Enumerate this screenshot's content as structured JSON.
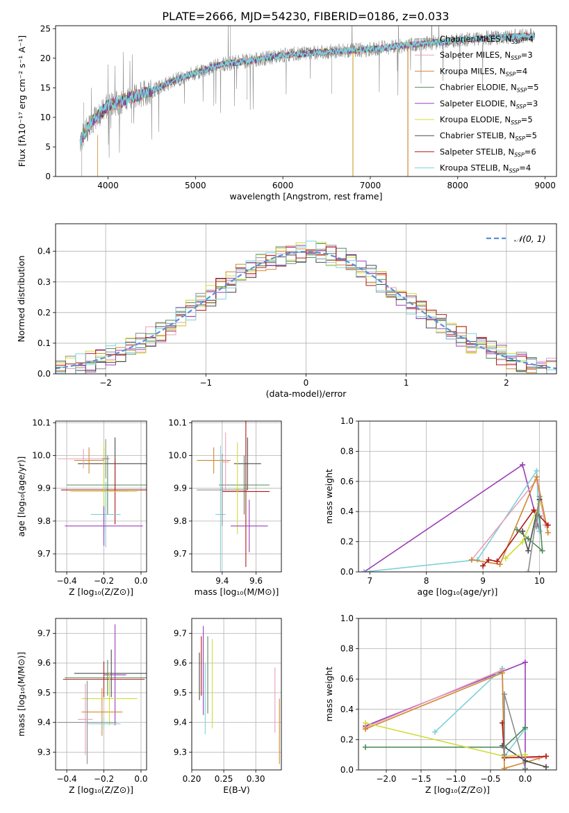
{
  "figure_title": "PLATE=2666, MJD=54230, FIBERID=0186, z=0.033",
  "model_colors": [
    "#8c8c8c",
    "#e8a0b8",
    "#d08830",
    "#4f8a5a",
    "#9a3fb8",
    "#d0dc3a",
    "#4a4a4a",
    "#b01818",
    "#7ed0d8"
  ],
  "chart_data": [
    {
      "id": "spectrum",
      "type": "line",
      "xlabel": "wavelength [Angstrom, rest frame]",
      "ylabel": "Flux [fλ10⁻¹⁷ erg cm⁻² s⁻¹ A⁻¹]",
      "xlim": [
        3400,
        9130
      ],
      "ylim": [
        0,
        25.5
      ],
      "xticks": [
        "4000",
        "5000",
        "6000",
        "7000",
        "8000",
        "9000"
      ],
      "yticks": [
        "0",
        "5",
        "10",
        "15",
        "20",
        "25"
      ],
      "grid": false,
      "legend_position": "right",
      "legend": [
        "Chabrier MILES, N_SSP=4",
        "Salpeter MILES, N_SSP=3",
        "Kroupa MILES, N_SSP=4",
        "Chabrier ELODIE, N_SSP=5",
        "Salpeter ELODIE, N_SSP=3",
        "Kroupa ELODIE, N_SSP=5",
        "Chabrier STELIB, N_SSP=5",
        "Salpeter STELIB, N_SSP=6",
        "Kroupa STELIB, N_SSP=4"
      ],
      "continuum": {
        "x": [
          3680,
          3800,
          4000,
          4200,
          4500,
          4800,
          5000,
          5300,
          5600,
          6000,
          6400,
          6800,
          7000,
          7300,
          7600,
          8000,
          8400,
          8800
        ],
        "y": [
          6.0,
          9.0,
          12.0,
          13.0,
          14.5,
          16.5,
          17.5,
          19.0,
          19.5,
          20.5,
          21.0,
          21.3,
          21.5,
          22.0,
          22.5,
          23.0,
          23.5,
          23.8
        ]
      }
    },
    {
      "id": "residuals",
      "type": "histogram",
      "xlabel": "(data-model)/error",
      "ylabel": "Normed distribution",
      "xlim": [
        -2.5,
        2.5
      ],
      "ylim": [
        0,
        0.49
      ],
      "xticks": [
        "−2",
        "−1",
        "0",
        "1",
        "2"
      ],
      "yticks": [
        "0.0",
        "0.1",
        "0.2",
        "0.3",
        "0.4"
      ],
      "grid": true,
      "legend_position": "top-right",
      "legend": [
        "𝒩(0, 1)"
      ],
      "bin_width": 0.1
    },
    {
      "id": "age_vs_Z",
      "type": "errorbar",
      "xlabel": "Z [log₁₀(Z/Z⊙)]",
      "ylabel": "age  [log₁₀(age/yr)]",
      "xlim": [
        -0.46,
        0.03
      ],
      "ylim": [
        9.645,
        10.105
      ],
      "xticks": [
        "−0.4",
        "−0.2",
        "0.0"
      ],
      "yticks": [
        "9.7",
        "9.8",
        "9.9",
        "10.0",
        "10.1"
      ],
      "grid": true,
      "points": [
        {
          "x": -0.14,
          "y": 9.975,
          "xerr": 0.2,
          "yerr": 0.08,
          "c": 6
        },
        {
          "x": -0.18,
          "y": 9.91,
          "xerr": 0.22,
          "yerr": 0.09,
          "c": 3
        },
        {
          "x": -0.2,
          "y": 9.895,
          "xerr": 0.23,
          "yerr": 0.13,
          "c": 7
        },
        {
          "x": -0.14,
          "y": 9.89,
          "xerr": 0.07,
          "yerr": 0.1,
          "c": 7
        },
        {
          "x": -0.2,
          "y": 9.89,
          "xerr": 0.18,
          "yerr": 0.15,
          "c": 5
        },
        {
          "x": -0.28,
          "y": 9.985,
          "xerr": 0.08,
          "yerr": 0.04,
          "c": 2
        },
        {
          "x": -0.31,
          "y": 9.99,
          "xerr": 0.14,
          "yerr": 0.03,
          "c": 1
        },
        {
          "x": -0.19,
          "y": 9.82,
          "xerr": 0.08,
          "yerr": 0.1,
          "c": 8
        },
        {
          "x": -0.2,
          "y": 9.785,
          "xerr": 0.21,
          "yerr": 0.06,
          "c": 4
        },
        {
          "x": -0.19,
          "y": 9.99,
          "xerr": 0.02,
          "yerr": 0.06,
          "c": 0
        }
      ]
    },
    {
      "id": "age_vs_mass",
      "type": "errorbar",
      "xlabel": "mass [log₁₀(M/M⊙)]",
      "ylabel": "",
      "xlim": [
        9.22,
        9.75
      ],
      "ylim": [
        9.645,
        10.105
      ],
      "xticks": [
        "9.4",
        "9.6"
      ],
      "yticks": [
        "9.7",
        "9.8",
        "9.9",
        "10.0",
        "10.1"
      ],
      "grid": true,
      "points": [
        {
          "x": 9.55,
          "y": 9.975,
          "xerr": 0.08,
          "yerr": 0.08,
          "c": 6
        },
        {
          "x": 9.53,
          "y": 9.91,
          "xerr": 0.15,
          "yerr": 0.09,
          "c": 3
        },
        {
          "x": 9.54,
          "y": 9.89,
          "xerr": 0.14,
          "yerr": 0.23,
          "c": 7
        },
        {
          "x": 9.35,
          "y": 9.985,
          "xerr": 0.1,
          "yerr": 0.04,
          "c": 2
        },
        {
          "x": 9.49,
          "y": 9.9,
          "xerr": 0.02,
          "yerr": 0.14,
          "c": 5
        },
        {
          "x": 9.39,
          "y": 9.82,
          "xerr": 0.03,
          "yerr": 0.21,
          "c": 8
        },
        {
          "x": 9.4,
          "y": 9.895,
          "xerr": 0.15,
          "yerr": 0.11,
          "c": 0
        },
        {
          "x": 9.56,
          "y": 9.785,
          "xerr": 0.11,
          "yerr": 0.08,
          "c": 4
        },
        {
          "x": 9.42,
          "y": 9.98,
          "xerr": 0.02,
          "yerr": 0.09,
          "c": 1
        }
      ]
    },
    {
      "id": "weight_vs_age",
      "type": "line",
      "xlabel": "age  [log₁₀(age/yr)]",
      "ylabel": "mass weight",
      "xlim": [
        6.8,
        10.3
      ],
      "ylim": [
        0,
        1.0
      ],
      "xticks": [
        "7",
        "8",
        "9",
        "10"
      ],
      "yticks": [
        "0.0",
        "0.2",
        "0.4",
        "0.6",
        "0.8",
        "1.0"
      ],
      "grid": true,
      "series": [
        {
          "c": 4,
          "x": [
            6.9,
            9.7,
            10.0
          ],
          "y": [
            0.0,
            0.71,
            0.27
          ]
        },
        {
          "c": 8,
          "x": [
            6.9,
            8.9,
            9.95,
            10.0
          ],
          "y": [
            0.0,
            0.08,
            0.67,
            0.27
          ]
        },
        {
          "c": 1,
          "x": [
            8.8,
            9.95,
            10.1
          ],
          "y": [
            0.08,
            0.61,
            0.31
          ]
        },
        {
          "c": 2,
          "x": [
            8.8,
            9.3,
            9.95,
            10.15
          ],
          "y": [
            0.08,
            0.05,
            0.63,
            0.26
          ]
        },
        {
          "c": 7,
          "x": [
            9.0,
            9.1,
            9.25,
            9.9,
            10.15
          ],
          "y": [
            0.04,
            0.08,
            0.07,
            0.41,
            0.31
          ]
        },
        {
          "c": 6,
          "x": [
            9.7,
            9.8,
            10.0
          ],
          "y": [
            0.27,
            0.14,
            0.48
          ]
        },
        {
          "c": 3,
          "x": [
            9.6,
            9.8,
            10.05,
            10.0
          ],
          "y": [
            0.28,
            0.22,
            0.14,
            0.37
          ]
        },
        {
          "c": 5,
          "x": [
            9.4,
            9.7,
            10.0
          ],
          "y": [
            0.09,
            0.2,
            0.45
          ]
        },
        {
          "c": 0,
          "x": [
            9.8,
            10.0,
            9.95
          ],
          "y": [
            0.0,
            0.5,
            0.3
          ]
        }
      ]
    },
    {
      "id": "mass_vs_Z",
      "type": "errorbar",
      "xlabel": "Z [log₁₀(Z/Z⊙)]",
      "ylabel": "mass [log₁₀(M/M⊙)]",
      "xlim": [
        -0.46,
        0.03
      ],
      "ylim": [
        9.24,
        9.75
      ],
      "xticks": [
        "−0.4",
        "−0.2",
        "0.0"
      ],
      "yticks": [
        "9.3",
        "9.4",
        "9.5",
        "9.6",
        "9.7"
      ],
      "grid": true,
      "points": [
        {
          "x": -0.16,
          "y": 9.565,
          "xerr": 0.2,
          "yerr": 0.08,
          "c": 6
        },
        {
          "x": -0.18,
          "y": 9.55,
          "xerr": 0.23,
          "yerr": 0.06,
          "c": 3
        },
        {
          "x": -0.2,
          "y": 9.545,
          "xerr": 0.22,
          "yerr": 0.06,
          "c": 7
        },
        {
          "x": -0.14,
          "y": 9.56,
          "xerr": 0.06,
          "yerr": 0.17,
          "c": 4
        },
        {
          "x": -0.21,
          "y": 9.435,
          "xerr": 0.11,
          "yerr": 0.08,
          "c": 2
        },
        {
          "x": -0.17,
          "y": 9.48,
          "xerr": 0.15,
          "yerr": 0.09,
          "c": 5
        },
        {
          "x": -0.29,
          "y": 9.4,
          "xerr": 0.16,
          "yerr": 0.14,
          "c": 0
        },
        {
          "x": -0.3,
          "y": 9.41,
          "xerr": 0.04,
          "yerr": 0.12,
          "c": 1
        },
        {
          "x": -0.2,
          "y": 9.395,
          "xerr": 0.09,
          "yerr": 0.02,
          "c": 8
        }
      ]
    },
    {
      "id": "mass_vs_ebv",
      "type": "errorbar",
      "xlabel": "E(B-V)",
      "ylabel": "",
      "xlim": [
        0.2,
        0.34
      ],
      "ylim": [
        9.24,
        9.75
      ],
      "xticks": [
        "0.20",
        "0.25",
        "0.30"
      ],
      "yticks": [
        "9.3",
        "9.4",
        "9.5",
        "9.6",
        "9.7"
      ],
      "grid": true,
      "points": [
        {
          "x": 0.212,
          "y": 9.555,
          "xerr": 0.0,
          "yerr": 0.08,
          "c": 6
        },
        {
          "x": 0.215,
          "y": 9.59,
          "xerr": 0.0,
          "yerr": 0.1,
          "c": 7
        },
        {
          "x": 0.218,
          "y": 9.575,
          "xerr": 0.0,
          "yerr": 0.15,
          "c": 4
        },
        {
          "x": 0.221,
          "y": 9.48,
          "xerr": 0.0,
          "yerr": 0.12,
          "c": 8
        },
        {
          "x": 0.225,
          "y": 9.56,
          "xerr": 0.0,
          "yerr": 0.13,
          "c": 3
        },
        {
          "x": 0.232,
          "y": 9.53,
          "xerr": 0.0,
          "yerr": 0.15,
          "c": 5
        },
        {
          "x": 0.33,
          "y": 9.475,
          "xerr": 0.0,
          "yerr": 0.11,
          "c": 1
        },
        {
          "x": 0.337,
          "y": 9.37,
          "xerr": 0.0,
          "yerr": 0.11,
          "c": 2
        }
      ]
    },
    {
      "id": "weight_vs_Z",
      "type": "line",
      "xlabel": "Z [log₁₀(Z/Z⊙)]",
      "ylabel": "mass weight",
      "xlim": [
        -2.4,
        0.45
      ],
      "ylim": [
        0,
        1.0
      ],
      "xticks": [
        "−2.0",
        "−1.5",
        "−1.0",
        "−0.5",
        "0.0"
      ],
      "yticks": [
        "0.0",
        "0.2",
        "0.4",
        "0.6",
        "0.8",
        "1.0"
      ],
      "grid": true,
      "series": [
        {
          "c": 4,
          "x": [
            -2.3,
            0.0,
            0.0
          ],
          "y": [
            0.29,
            0.71,
            0.0
          ]
        },
        {
          "c": 8,
          "x": [
            -1.3,
            -0.33,
            -0.3,
            0.0
          ],
          "y": [
            0.25,
            0.67,
            0.09,
            0.27
          ]
        },
        {
          "c": 1,
          "x": [
            -2.3,
            -0.33,
            -0.3,
            0.2
          ],
          "y": [
            0.28,
            0.66,
            0.08,
            0.08
          ]
        },
        {
          "c": 2,
          "x": [
            -2.3,
            -0.33,
            -0.3,
            0.3
          ],
          "y": [
            0.27,
            0.64,
            0.01,
            0.09
          ]
        },
        {
          "c": 7,
          "x": [
            -0.33,
            -0.3,
            0.3
          ],
          "y": [
            0.31,
            0.08,
            0.09
          ]
        },
        {
          "c": 6,
          "x": [
            -0.33,
            0.0,
            0.3
          ],
          "y": [
            0.16,
            0.06,
            0.02
          ]
        },
        {
          "c": 3,
          "x": [
            -2.3,
            -0.3,
            0.0
          ],
          "y": [
            0.15,
            0.15,
            0.28
          ]
        },
        {
          "c": 5,
          "x": [
            -2.3,
            -0.3,
            0.0
          ],
          "y": [
            0.31,
            0.09,
            0.1
          ]
        },
        {
          "c": 0,
          "x": [
            -0.3,
            -0.3,
            0.0
          ],
          "y": [
            0.1,
            0.5,
            0.01
          ]
        }
      ]
    }
  ]
}
